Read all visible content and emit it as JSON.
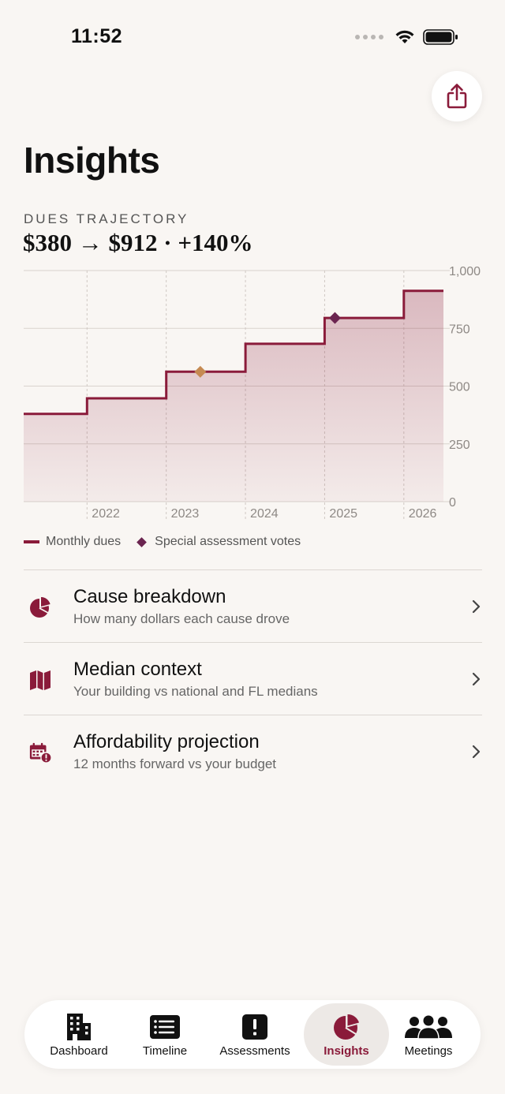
{
  "status_bar": {
    "time": "11:52"
  },
  "header": {
    "title": "Insights",
    "share_icon": "share-icon"
  },
  "dues": {
    "kicker": "DUES TRAJECTORY",
    "headline": "$380 → $912 · +140%"
  },
  "chart_data": {
    "type": "area",
    "step": true,
    "x_unit": "year",
    "xlim": [
      2021.2,
      2026.5
    ],
    "ylim": [
      0,
      1000
    ],
    "yticks": [
      0,
      250,
      500,
      750,
      1000
    ],
    "ytick_labels": [
      "0",
      "250",
      "500",
      "750",
      "1,000"
    ],
    "xtick_labels": [
      "2022",
      "2023",
      "2024",
      "2025",
      "2026"
    ],
    "grid": true,
    "series": [
      {
        "name": "Monthly dues",
        "points": [
          [
            2021.2,
            380
          ],
          [
            2022.0,
            380
          ],
          [
            2022.0,
            447
          ],
          [
            2023.0,
            447
          ],
          [
            2023.0,
            562
          ],
          [
            2024.0,
            562
          ],
          [
            2024.0,
            683
          ],
          [
            2024.0,
            683
          ],
          [
            2025.0,
            683
          ],
          [
            2025.0,
            795
          ],
          [
            2026.0,
            795
          ],
          [
            2026.0,
            912
          ],
          [
            2026.5,
            912
          ]
        ],
        "color": "#8a1b3a"
      },
      {
        "name": "Special assessment votes",
        "points": [
          [
            2023.43,
            562
          ],
          [
            2025.13,
            795
          ]
        ],
        "colors": [
          "#c58a52",
          "#6b2550"
        ]
      }
    ],
    "legend": [
      "Monthly dues",
      "Special assessment votes"
    ],
    "legend_placement": "bottom-left"
  },
  "rows": [
    {
      "title": "Cause breakdown",
      "subtitle": "How many dollars each cause drove",
      "icon": "pie-chart-icon"
    },
    {
      "title": "Median context",
      "subtitle": "Your building vs national and FL medians",
      "icon": "map-icon"
    },
    {
      "title": "Affordability projection",
      "subtitle": "12 months forward vs your budget",
      "icon": "calendar-alert-icon"
    }
  ],
  "tabs": [
    {
      "label": "Dashboard",
      "icon": "building-icon"
    },
    {
      "label": "Timeline",
      "icon": "list-icon"
    },
    {
      "label": "Assessments",
      "icon": "exclamation-icon"
    },
    {
      "label": "Insights",
      "icon": "pie-chart-icon",
      "active": true
    },
    {
      "label": "Meetings",
      "icon": "people-icon"
    }
  ],
  "colors": {
    "accent": "#8a1b3a",
    "background": "#f9f6f3",
    "marker_orange": "#c58a52",
    "marker_purple": "#6b2550"
  }
}
